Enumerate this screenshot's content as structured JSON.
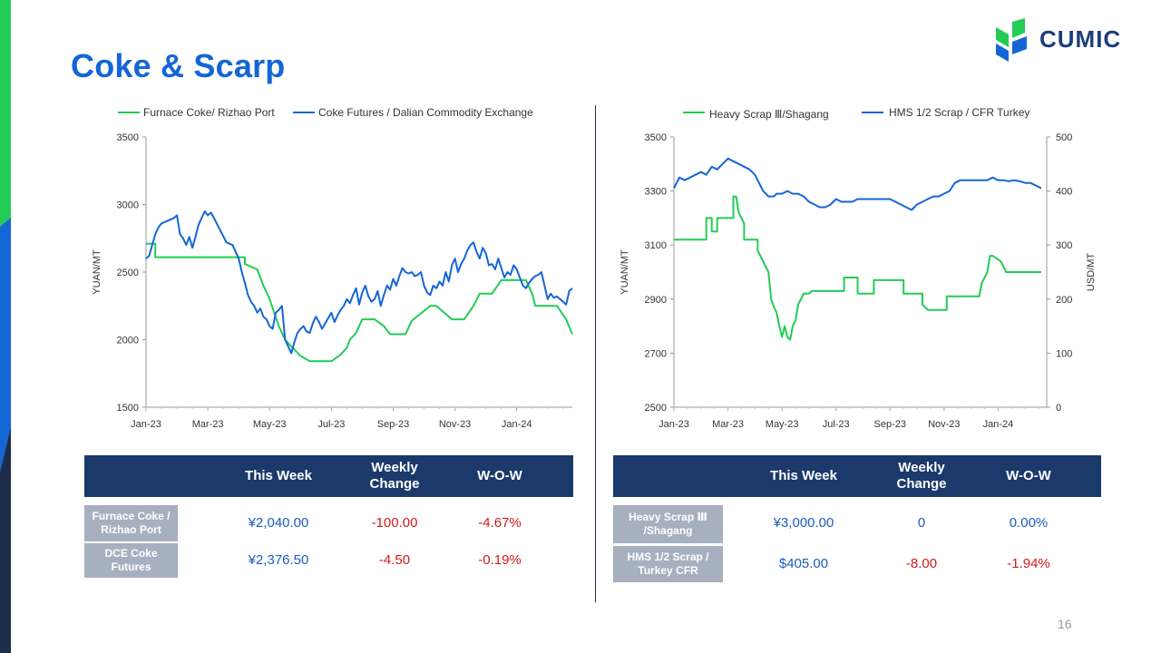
{
  "title": "Coke & Scarp",
  "logo": {
    "text": "CUMIC"
  },
  "page_number": "16",
  "colors": {
    "green": "#22cc55",
    "blue": "#1466d6",
    "header_navy": "#1b3a6b",
    "row_label_gray": "#a7b0bf",
    "negative_red": "#d01a1a"
  },
  "chart_data": [
    {
      "type": "line",
      "legend": [
        "Furnace Coke/ Rizhao Port",
        "Coke Futures / Dalian Commodity Exchange"
      ],
      "legend_position": "top",
      "ylabel": "YUAN/MT",
      "ylim": [
        1500,
        3500
      ],
      "yticks": [
        "1500",
        "2000",
        "2500",
        "3000",
        "3500"
      ],
      "xticks": [
        "Jan-23",
        "Mar-23",
        "May-23",
        "Jul-23",
        "Sep-23",
        "Nov-23",
        "Jan-24"
      ],
      "series": [
        {
          "name": "Furnace Coke/ Rizhao Port",
          "color": "#22cc55",
          "x": [
            0,
            0.3,
            0.3,
            3.2,
            3.2,
            3.6,
            3.8,
            4.0,
            4.15,
            4.3,
            4.5,
            4.7,
            5.0,
            5.3,
            5.5,
            5.8,
            6.0,
            6.3,
            6.5,
            6.6,
            6.8,
            7.0,
            7.4,
            7.7,
            7.9,
            8.2,
            8.4,
            8.6,
            9.2,
            9.4,
            9.9,
            10.3,
            10.6,
            10.8,
            11.2,
            11.5,
            11.9,
            12.3,
            12.5,
            12.6,
            13.3,
            13.6,
            13.8
          ],
          "y": [
            2710,
            2710,
            2610,
            2610,
            2560,
            2520,
            2400,
            2300,
            2200,
            2100,
            2000,
            1950,
            1880,
            1840,
            1840,
            1840,
            1840,
            1890,
            1940,
            2000,
            2050,
            2150,
            2150,
            2100,
            2040,
            2040,
            2040,
            2140,
            2250,
            2250,
            2150,
            2150,
            2250,
            2340,
            2340,
            2440,
            2440,
            2440,
            2340,
            2250,
            2250,
            2150,
            2040
          ]
        },
        {
          "name": "Coke Futures / Dalian Commodity Exchange",
          "color": "#1466d6",
          "x": [
            0,
            0.1,
            0.2,
            0.3,
            0.4,
            0.5,
            0.6,
            0.8,
            0.9,
            1.0,
            1.1,
            1.2,
            1.3,
            1.4,
            1.5,
            1.6,
            1.7,
            1.8,
            1.9,
            2.0,
            2.1,
            2.2,
            2.4,
            2.6,
            2.8,
            3.0,
            3.1,
            3.2,
            3.3,
            3.4,
            3.5,
            3.6,
            3.7,
            3.8,
            3.9,
            4.0,
            4.1,
            4.2,
            4.3,
            4.4,
            4.5,
            4.6,
            4.7,
            4.8,
            4.9,
            5.0,
            5.1,
            5.2,
            5.3,
            5.4,
            5.5,
            5.6,
            5.7,
            5.8,
            5.9,
            6.0,
            6.1,
            6.2,
            6.3,
            6.4,
            6.5,
            6.6,
            6.7,
            6.8,
            6.9,
            7.0,
            7.1,
            7.2,
            7.3,
            7.4,
            7.5,
            7.6,
            7.7,
            7.8,
            7.9,
            8.0,
            8.1,
            8.2,
            8.3,
            8.4,
            8.5,
            8.6,
            8.7,
            8.8,
            8.9,
            9.0,
            9.1,
            9.2,
            9.3,
            9.4,
            9.5,
            9.6,
            9.7,
            9.8,
            9.9,
            10.0,
            10.1,
            10.2,
            10.3,
            10.4,
            10.5,
            10.6,
            10.7,
            10.8,
            10.9,
            11.0,
            11.1,
            11.2,
            11.3,
            11.4,
            11.5,
            11.6,
            11.7,
            11.8,
            11.9,
            12.0,
            12.1,
            12.2,
            12.3,
            12.4,
            12.5,
            12.6,
            12.7,
            12.8,
            12.9,
            13.0,
            13.1,
            13.2,
            13.3,
            13.4,
            13.5,
            13.6,
            13.7,
            13.8
          ],
          "y": [
            2600,
            2620,
            2700,
            2780,
            2830,
            2860,
            2870,
            2890,
            2900,
            2920,
            2780,
            2750,
            2700,
            2760,
            2680,
            2760,
            2850,
            2900,
            2950,
            2920,
            2940,
            2900,
            2810,
            2720,
            2700,
            2600,
            2500,
            2420,
            2330,
            2280,
            2250,
            2200,
            2230,
            2170,
            2150,
            2100,
            2080,
            2200,
            2220,
            2250,
            2000,
            1950,
            1900,
            1980,
            2050,
            2080,
            2100,
            2060,
            2050,
            2120,
            2170,
            2130,
            2080,
            2120,
            2160,
            2200,
            2130,
            2180,
            2220,
            2250,
            2300,
            2270,
            2330,
            2380,
            2260,
            2350,
            2400,
            2320,
            2280,
            2300,
            2360,
            2250,
            2330,
            2400,
            2370,
            2450,
            2400,
            2470,
            2530,
            2500,
            2490,
            2500,
            2470,
            2480,
            2500,
            2400,
            2350,
            2330,
            2400,
            2380,
            2430,
            2400,
            2500,
            2430,
            2550,
            2600,
            2500,
            2560,
            2600,
            2660,
            2700,
            2720,
            2650,
            2600,
            2680,
            2640,
            2550,
            2560,
            2520,
            2600,
            2530,
            2460,
            2500,
            2480,
            2550,
            2520,
            2460,
            2400,
            2380,
            2420,
            2450,
            2470,
            2480,
            2500,
            2400,
            2300,
            2340,
            2310,
            2320,
            2300,
            2280,
            2260,
            2360,
            2380
          ]
        }
      ]
    },
    {
      "type": "line",
      "legend": [
        "Heavy Scrap Ⅲ/Shagang",
        "HMS 1/2 Scrap / CFR Turkey"
      ],
      "legend_position": "top",
      "ylabel": "YUAN/MT",
      "y2label": "USD/MT",
      "ylim": [
        2500,
        3500
      ],
      "y2lim": [
        0,
        500
      ],
      "yticks": [
        "2500",
        "2700",
        "2900",
        "3100",
        "3300",
        "3500"
      ],
      "y2ticks": [
        "0",
        "100",
        "200",
        "300",
        "400",
        "500"
      ],
      "xticks": [
        "Jan-23",
        "Mar-23",
        "May-23",
        "Jul-23",
        "Sep-23",
        "Nov-23",
        "Jan-24"
      ],
      "series": [
        {
          "name": "Heavy Scrap Ⅲ/Shagang",
          "axis": "left",
          "color": "#22cc55",
          "x": [
            0,
            1.2,
            1.2,
            1.4,
            1.4,
            1.6,
            1.6,
            2.2,
            2.2,
            2.3,
            2.4,
            2.5,
            2.6,
            2.6,
            3.1,
            3.1,
            3.5,
            3.6,
            3.7,
            3.8,
            3.9,
            4.0,
            4.1,
            4.2,
            4.3,
            4.4,
            4.5,
            4.6,
            4.7,
            4.8,
            5.0,
            5.1,
            5.3,
            5.6,
            6.3,
            6.3,
            6.8,
            6.8,
            7.4,
            7.4,
            8.5,
            8.5,
            9.2,
            9.2,
            9.4,
            9.5,
            9.6,
            10.1,
            10.1,
            11.3,
            11.4,
            11.6,
            11.7,
            11.8,
            12.1,
            12.3,
            13.6
          ],
          "y": [
            3120,
            3120,
            3200,
            3200,
            3150,
            3150,
            3200,
            3200,
            3280,
            3280,
            3220,
            3200,
            3180,
            3120,
            3120,
            3080,
            3000,
            2900,
            2870,
            2850,
            2800,
            2760,
            2800,
            2760,
            2750,
            2800,
            2820,
            2880,
            2900,
            2920,
            2920,
            2930,
            2930,
            2930,
            2930,
            2980,
            2980,
            2920,
            2920,
            2970,
            2970,
            2920,
            2920,
            2880,
            2860,
            2860,
            2860,
            2860,
            2910,
            2910,
            2960,
            3000,
            3060,
            3060,
            3040,
            3000,
            3000
          ]
        },
        {
          "name": "HMS 1/2 Scrap / CFR Turkey",
          "axis": "right",
          "color": "#1466d6",
          "x": [
            0,
            0.2,
            0.4,
            0.6,
            0.8,
            1.0,
            1.2,
            1.4,
            1.6,
            1.8,
            2.0,
            2.2,
            2.4,
            2.6,
            2.8,
            3.0,
            3.1,
            3.2,
            3.3,
            3.4,
            3.5,
            3.6,
            3.7,
            3.8,
            4.0,
            4.2,
            4.4,
            4.6,
            4.8,
            5.0,
            5.2,
            5.4,
            5.6,
            5.8,
            6.0,
            6.2,
            6.4,
            6.6,
            6.8,
            7.0,
            7.2,
            7.4,
            7.6,
            7.8,
            8.0,
            8.2,
            8.4,
            8.6,
            8.8,
            9.0,
            9.2,
            9.4,
            9.6,
            9.8,
            10.0,
            10.2,
            10.4,
            10.6,
            10.8,
            11.0,
            11.2,
            11.4,
            11.6,
            11.8,
            12.0,
            12.2,
            12.4,
            12.6,
            12.8,
            13.0,
            13.2,
            13.4,
            13.6
          ],
          "y": [
            405,
            425,
            420,
            425,
            430,
            435,
            430,
            445,
            440,
            450,
            460,
            455,
            450,
            445,
            440,
            430,
            420,
            410,
            400,
            395,
            390,
            390,
            390,
            395,
            395,
            400,
            395,
            395,
            390,
            380,
            375,
            370,
            370,
            375,
            385,
            380,
            380,
            380,
            385,
            385,
            385,
            385,
            385,
            385,
            385,
            380,
            375,
            370,
            365,
            375,
            380,
            385,
            390,
            390,
            395,
            400,
            415,
            420,
            420,
            420,
            420,
            420,
            420,
            425,
            420,
            420,
            418,
            420,
            418,
            415,
            415,
            410,
            405
          ]
        }
      ]
    }
  ],
  "table_left": {
    "headers": [
      "This Week",
      "Weekly Change",
      "W-O-W"
    ],
    "rows": [
      {
        "label": "Furnace Coke / Rizhao Port",
        "this_week": "¥2,040.00",
        "weekly_change": "-100.00",
        "wow": "-4.67%"
      },
      {
        "label": "DCE  Coke Futures",
        "this_week": "¥2,376.50",
        "weekly_change": "-4.50",
        "wow": "-0.19%"
      }
    ]
  },
  "table_right": {
    "headers": [
      "This Week",
      "Weekly Change",
      "W-O-W"
    ],
    "rows": [
      {
        "label": "Heavy Scrap Ⅲ /Shagang",
        "this_week": "¥3,000.00",
        "weekly_change": "0",
        "wow": "0.00%"
      },
      {
        "label": "HMS 1/2 Scrap / Turkey CFR",
        "this_week": "$405.00",
        "weekly_change": "-8.00",
        "wow": "-1.94%"
      }
    ]
  }
}
